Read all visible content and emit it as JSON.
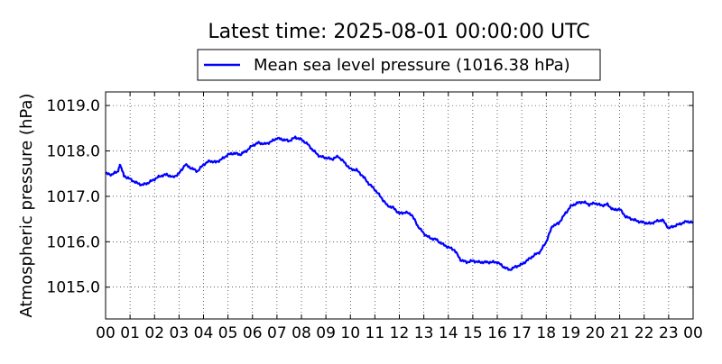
{
  "chart_data": {
    "type": "line",
    "title": "Latest time: 2025-08-01 00:00:00 UTC",
    "ylabel": "Atmospheric pressure (hPa)",
    "xlabel": "",
    "ylim": [
      1014.3,
      1019.3
    ],
    "xlim": [
      0,
      24
    ],
    "grid": true,
    "legend_position": "top-center",
    "xticks": [
      "00",
      "01",
      "02",
      "03",
      "04",
      "05",
      "06",
      "07",
      "08",
      "09",
      "10",
      "11",
      "12",
      "13",
      "14",
      "15",
      "16",
      "17",
      "18",
      "19",
      "20",
      "21",
      "22",
      "23",
      "00"
    ],
    "yticks": [
      "1015.0",
      "1016.0",
      "1017.0",
      "1018.0",
      "1019.0"
    ],
    "series": [
      {
        "name": "Mean sea level pressure (1016.38 hPa)",
        "color": "#0000ff",
        "x": [
          0,
          0.25,
          0.5,
          0.6,
          0.75,
          1.0,
          1.25,
          1.5,
          1.75,
          2.0,
          2.25,
          2.5,
          2.75,
          3.0,
          3.25,
          3.5,
          3.75,
          4.0,
          4.25,
          4.5,
          4.75,
          5.0,
          5.25,
          5.5,
          5.75,
          6.0,
          6.25,
          6.5,
          6.75,
          7.0,
          7.25,
          7.5,
          7.75,
          8.0,
          8.25,
          8.5,
          8.75,
          9.0,
          9.25,
          9.5,
          9.75,
          10.0,
          10.25,
          10.5,
          10.75,
          11.0,
          11.25,
          11.5,
          11.75,
          12.0,
          12.25,
          12.5,
          12.75,
          13.0,
          13.25,
          13.5,
          13.75,
          14.0,
          14.25,
          14.5,
          14.75,
          15.0,
          15.25,
          15.5,
          15.75,
          16.0,
          16.25,
          16.5,
          16.75,
          17.0,
          17.25,
          17.5,
          17.75,
          18.0,
          18.25,
          18.5,
          18.75,
          19.0,
          19.25,
          19.5,
          19.75,
          20.0,
          20.25,
          20.5,
          20.75,
          21.0,
          21.25,
          21.5,
          21.75,
          22.0,
          22.25,
          22.5,
          22.75,
          23.0,
          23.25,
          23.5,
          23.75,
          24.0
        ],
        "y": [
          1017.5,
          1017.48,
          1017.55,
          1017.7,
          1017.45,
          1017.38,
          1017.3,
          1017.25,
          1017.3,
          1017.38,
          1017.45,
          1017.48,
          1017.42,
          1017.5,
          1017.7,
          1017.62,
          1017.55,
          1017.7,
          1017.78,
          1017.75,
          1017.82,
          1017.92,
          1017.95,
          1017.92,
          1018.0,
          1018.12,
          1018.18,
          1018.15,
          1018.2,
          1018.28,
          1018.25,
          1018.22,
          1018.3,
          1018.25,
          1018.15,
          1018.0,
          1017.88,
          1017.85,
          1017.82,
          1017.88,
          1017.75,
          1017.6,
          1017.58,
          1017.45,
          1017.28,
          1017.15,
          1016.98,
          1016.8,
          1016.75,
          1016.62,
          1016.65,
          1016.6,
          1016.35,
          1016.18,
          1016.08,
          1016.05,
          1015.95,
          1015.88,
          1015.82,
          1015.6,
          1015.55,
          1015.58,
          1015.55,
          1015.55,
          1015.55,
          1015.55,
          1015.45,
          1015.38,
          1015.45,
          1015.5,
          1015.6,
          1015.7,
          1015.78,
          1016.0,
          1016.35,
          1016.4,
          1016.6,
          1016.78,
          1016.85,
          1016.88,
          1016.82,
          1016.85,
          1016.8,
          1016.82,
          1016.7,
          1016.72,
          1016.55,
          1016.5,
          1016.45,
          1016.42,
          1016.4,
          1016.45,
          1016.48,
          1016.3,
          1016.35,
          1016.4,
          1016.45,
          1016.42
        ]
      }
    ]
  }
}
